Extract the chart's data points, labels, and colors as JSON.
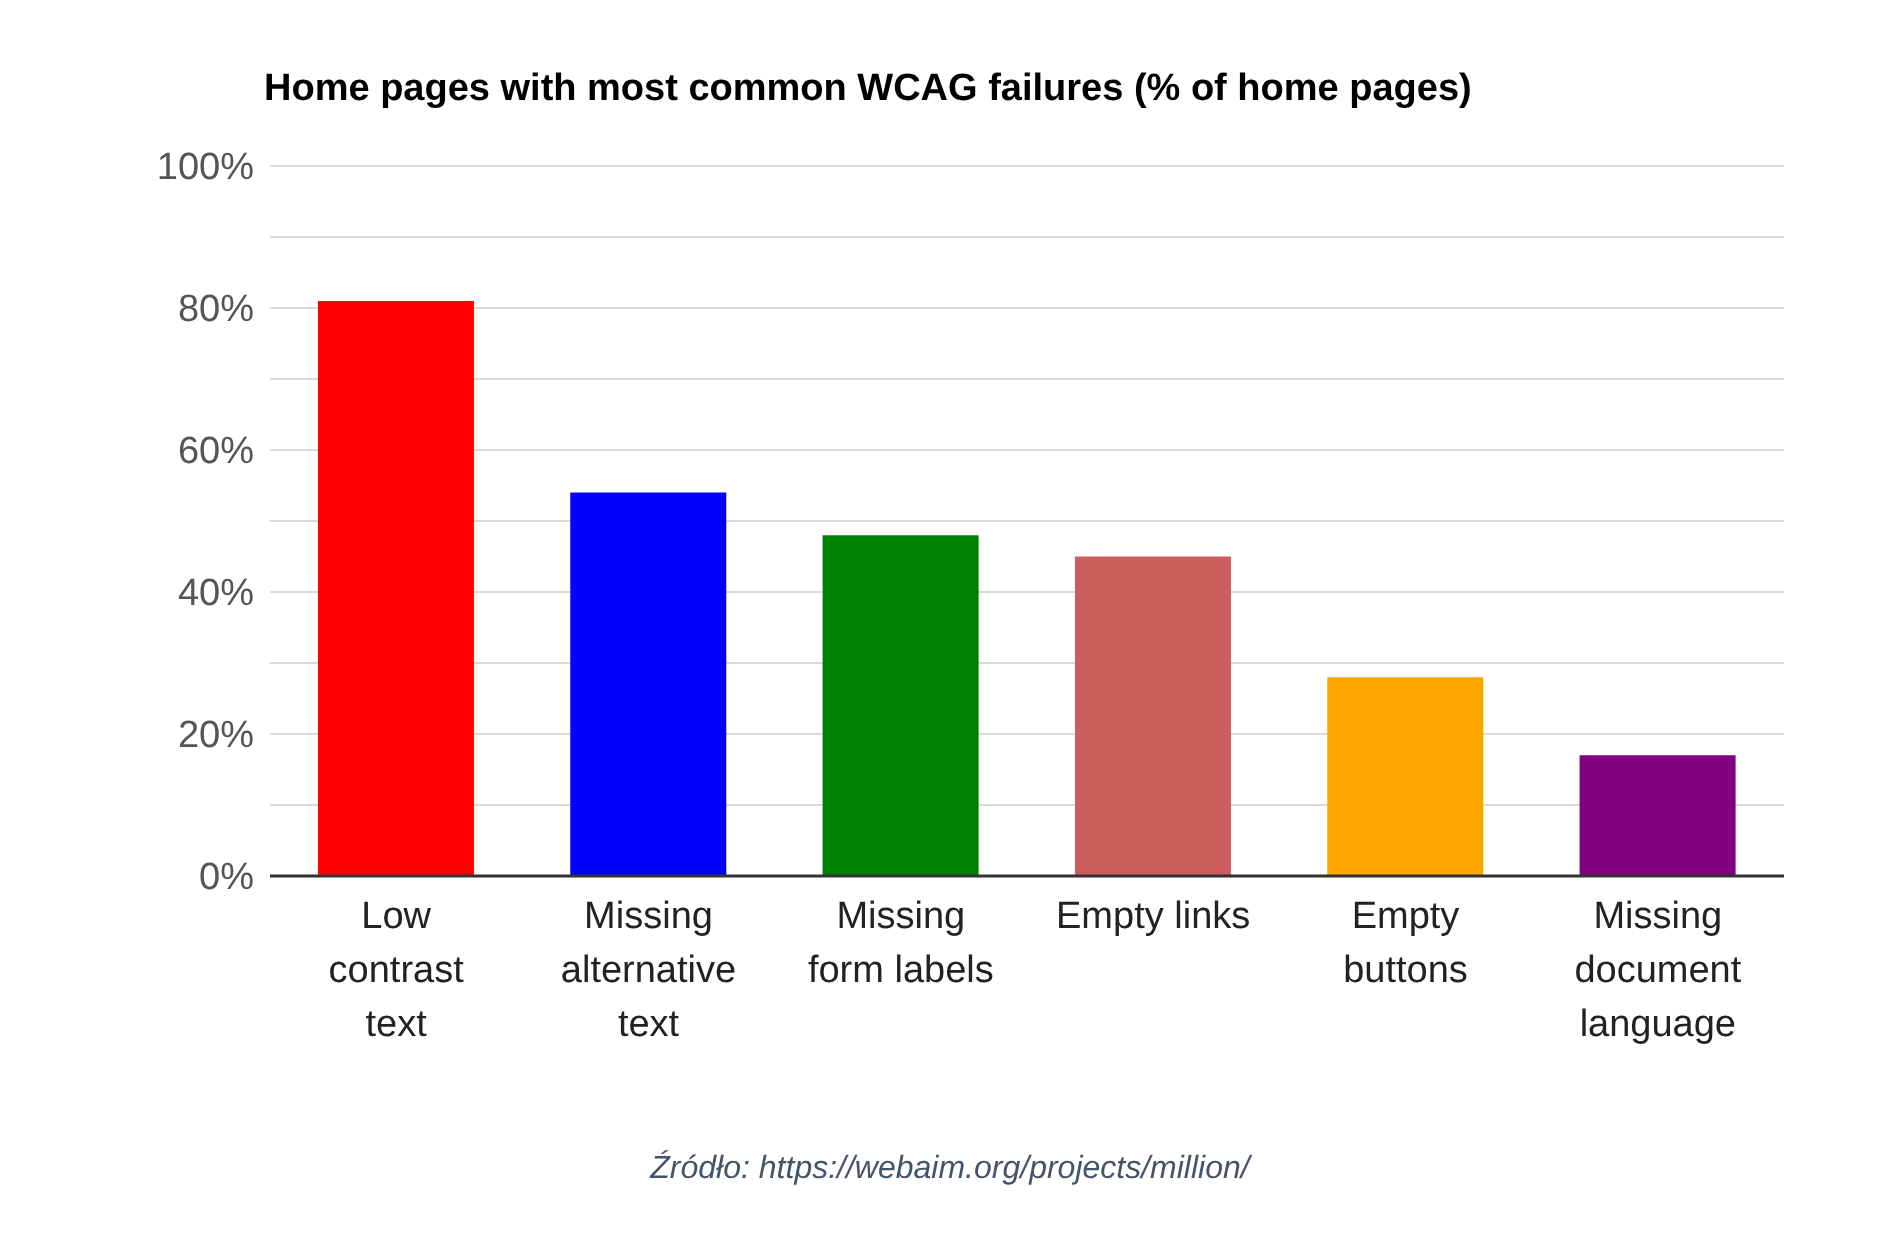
{
  "chart_data": {
    "type": "bar",
    "title": "Home pages with most common WCAG failures (% of home pages)",
    "categories": [
      "Low contrast text",
      "Missing alternative text",
      "Missing form labels",
      "Empty links",
      "Empty buttons",
      "Missing document language"
    ],
    "values": [
      81,
      54,
      48,
      45,
      28,
      17
    ],
    "colors": [
      "#ff0000",
      "#0000ff",
      "#008000",
      "#cd5c5c",
      "#ffa500",
      "#800080"
    ],
    "ylim": [
      0,
      100
    ],
    "yticks": [
      {
        "value": 0,
        "label": "0%"
      },
      {
        "value": 10,
        "label": null
      },
      {
        "value": 20,
        "label": "20%"
      },
      {
        "value": 30,
        "label": null
      },
      {
        "value": 40,
        "label": "40%"
      },
      {
        "value": 50,
        "label": null
      },
      {
        "value": 60,
        "label": "60%"
      },
      {
        "value": 70,
        "label": null
      },
      {
        "value": 80,
        "label": "80%"
      },
      {
        "value": 90,
        "label": null
      },
      {
        "value": 100,
        "label": "100%"
      }
    ],
    "grid": "y",
    "annotations": [
      "Źródło: https://webaim.org/projects/million/"
    ]
  }
}
